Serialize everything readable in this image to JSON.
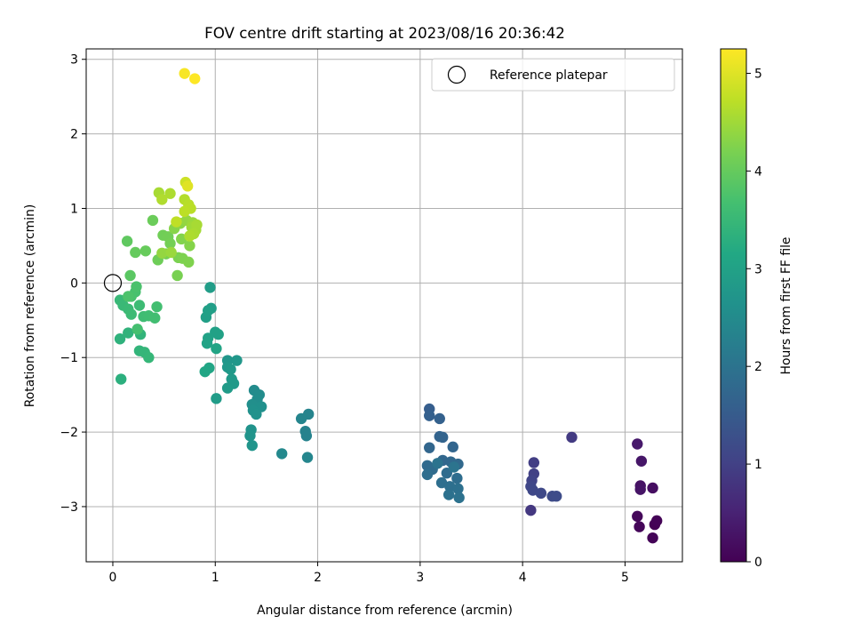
{
  "chart_data": {
    "type": "scatter",
    "title": "FOV centre drift starting at 2023/08/16 20:36:42",
    "xlabel": "Angular distance from reference (arcmin)",
    "ylabel": "Rotation from reference (arcmin)",
    "xlim": [
      -0.26,
      5.56
    ],
    "ylim": [
      -3.74,
      3.14
    ],
    "xticks": [
      "0",
      "1",
      "2",
      "3",
      "4",
      "5"
    ],
    "yticks": [
      "−3",
      "−2",
      "−1",
      "0",
      "1",
      "2",
      "3"
    ],
    "grid": true,
    "legend": {
      "placement": "top-right",
      "entries": [
        "Reference platepar"
      ]
    },
    "colorbar": {
      "label": "Hours from first FF file",
      "range": [
        0,
        5.25
      ],
      "ticks": [
        "0",
        "1",
        "2",
        "3",
        "4",
        "5"
      ],
      "colormap": "viridis"
    },
    "reference_point": {
      "x": 0,
      "y": 0
    },
    "points": [
      [
        5.29,
        -3.24,
        0.0
      ],
      [
        5.31,
        -3.19,
        0.03
      ],
      [
        5.27,
        -3.42,
        0.05
      ],
      [
        5.14,
        -3.27,
        0.08
      ],
      [
        5.12,
        -3.13,
        0.1
      ],
      [
        5.27,
        -2.75,
        0.2
      ],
      [
        5.15,
        -2.72,
        0.25
      ],
      [
        5.15,
        -2.77,
        0.28
      ],
      [
        5.16,
        -2.39,
        0.32
      ],
      [
        5.12,
        -2.16,
        0.36
      ],
      [
        4.48,
        -2.07,
        0.9
      ],
      [
        4.08,
        -3.05,
        0.85
      ],
      [
        4.11,
        -2.41,
        0.95
      ],
      [
        4.11,
        -2.56,
        1.0
      ],
      [
        4.09,
        -2.65,
        1.05
      ],
      [
        4.08,
        -2.73,
        1.1
      ],
      [
        4.1,
        -2.78,
        1.12
      ],
      [
        4.18,
        -2.82,
        1.15
      ],
      [
        4.29,
        -2.86,
        1.18
      ],
      [
        4.33,
        -2.86,
        1.2
      ],
      [
        3.09,
        -1.69,
        1.55
      ],
      [
        3.09,
        -1.78,
        1.6
      ],
      [
        3.19,
        -1.82,
        1.62
      ],
      [
        3.19,
        -2.06,
        1.65
      ],
      [
        3.22,
        -2.07,
        1.67
      ],
      [
        3.32,
        -2.2,
        1.7
      ],
      [
        3.09,
        -2.21,
        1.72
      ],
      [
        3.22,
        -2.38,
        1.74
      ],
      [
        3.3,
        -2.4,
        1.76
      ],
      [
        3.37,
        -2.43,
        1.78
      ],
      [
        3.07,
        -2.45,
        1.8
      ],
      [
        3.12,
        -2.5,
        1.82
      ],
      [
        3.26,
        -2.55,
        1.84
      ],
      [
        3.36,
        -2.62,
        1.86
      ],
      [
        3.07,
        -2.57,
        1.88
      ],
      [
        3.21,
        -2.68,
        1.9
      ],
      [
        3.29,
        -2.73,
        1.92
      ],
      [
        3.37,
        -2.76,
        1.94
      ],
      [
        3.28,
        -2.84,
        1.96
      ],
      [
        3.38,
        -2.88,
        1.98
      ],
      [
        3.17,
        -2.42,
        2.0
      ],
      [
        3.33,
        -2.47,
        2.02
      ],
      [
        1.88,
        -1.99,
        2.3
      ],
      [
        1.89,
        -2.05,
        2.32
      ],
      [
        1.91,
        -1.76,
        2.35
      ],
      [
        1.84,
        -1.82,
        2.38
      ],
      [
        1.65,
        -2.29,
        2.45
      ],
      [
        1.9,
        -2.34,
        2.4
      ],
      [
        1.38,
        -1.44,
        2.5
      ],
      [
        1.43,
        -1.5,
        2.52
      ],
      [
        1.41,
        -1.56,
        2.55
      ],
      [
        1.36,
        -1.63,
        2.58
      ],
      [
        1.45,
        -1.66,
        2.6
      ],
      [
        1.37,
        -1.71,
        2.62
      ],
      [
        1.4,
        -1.76,
        2.65
      ],
      [
        1.35,
        -1.97,
        2.68
      ],
      [
        1.34,
        -2.05,
        2.7
      ],
      [
        1.36,
        -2.18,
        2.72
      ],
      [
        1.12,
        -1.04,
        2.75
      ],
      [
        1.21,
        -1.04,
        2.76
      ],
      [
        1.12,
        -1.13,
        2.78
      ],
      [
        1.15,
        -1.16,
        2.8
      ],
      [
        1.16,
        -1.29,
        2.82
      ],
      [
        1.18,
        -1.35,
        2.84
      ],
      [
        1.12,
        -1.41,
        2.86
      ],
      [
        1.01,
        -1.55,
        2.88
      ],
      [
        0.95,
        -0.06,
        2.9
      ],
      [
        0.96,
        -0.34,
        2.92
      ],
      [
        0.91,
        -0.46,
        2.94
      ],
      [
        0.93,
        -0.37,
        2.96
      ],
      [
        1.0,
        -0.66,
        2.98
      ],
      [
        1.03,
        -0.69,
        3.0
      ],
      [
        0.93,
        -0.74,
        3.02
      ],
      [
        0.92,
        -0.81,
        3.04
      ],
      [
        1.01,
        -0.88,
        3.06
      ],
      [
        0.94,
        -1.14,
        3.08
      ],
      [
        0.9,
        -1.19,
        3.1
      ],
      [
        0.08,
        -1.29,
        3.3
      ],
      [
        0.07,
        -0.75,
        3.35
      ],
      [
        0.15,
        -0.67,
        3.38
      ],
      [
        0.27,
        -0.69,
        3.4
      ],
      [
        0.26,
        -0.91,
        3.42
      ],
      [
        0.31,
        -0.93,
        3.44
      ],
      [
        0.35,
        -1.0,
        3.46
      ],
      [
        0.07,
        -0.23,
        3.5
      ],
      [
        0.1,
        -0.3,
        3.52
      ],
      [
        0.15,
        -0.35,
        3.54
      ],
      [
        0.18,
        -0.42,
        3.56
      ],
      [
        0.26,
        -0.3,
        3.58
      ],
      [
        0.3,
        -0.45,
        3.6
      ],
      [
        0.35,
        -0.44,
        3.62
      ],
      [
        0.41,
        -0.47,
        3.64
      ],
      [
        0.43,
        -0.32,
        3.66
      ],
      [
        0.24,
        -0.62,
        3.68
      ],
      [
        0.22,
        -0.12,
        3.7
      ],
      [
        0.18,
        -0.18,
        3.72
      ],
      [
        0.23,
        -0.05,
        3.74
      ],
      [
        0.15,
        -0.18,
        3.76
      ],
      [
        0.17,
        0.1,
        3.9
      ],
      [
        0.14,
        0.56,
        3.95
      ],
      [
        0.22,
        0.41,
        4.0
      ],
      [
        0.32,
        0.43,
        4.02
      ],
      [
        0.39,
        0.84,
        4.05
      ],
      [
        0.44,
        0.31,
        4.08
      ],
      [
        0.49,
        0.64,
        4.1
      ],
      [
        0.54,
        0.62,
        4.12
      ],
      [
        0.56,
        0.53,
        4.14
      ],
      [
        0.52,
        0.39,
        4.16
      ],
      [
        0.63,
        0.1,
        4.18
      ],
      [
        0.64,
        0.34,
        4.2
      ],
      [
        0.68,
        0.33,
        4.22
      ],
      [
        0.74,
        0.28,
        4.24
      ],
      [
        0.67,
        0.59,
        4.26
      ],
      [
        0.75,
        0.5,
        4.28
      ],
      [
        0.6,
        0.73,
        4.3
      ],
      [
        0.66,
        0.8,
        4.35
      ],
      [
        0.72,
        0.84,
        4.4
      ],
      [
        0.78,
        0.81,
        4.45
      ],
      [
        0.77,
        0.75,
        4.5
      ],
      [
        0.81,
        0.71,
        4.52
      ],
      [
        0.82,
        0.78,
        4.55
      ],
      [
        0.79,
        0.66,
        4.58
      ],
      [
        0.75,
        0.63,
        4.6
      ],
      [
        0.48,
        0.4,
        4.4
      ],
      [
        0.57,
        0.41,
        4.45
      ],
      [
        0.45,
        1.21,
        4.55
      ],
      [
        0.56,
        1.2,
        4.6
      ],
      [
        0.48,
        1.12,
        4.62
      ],
      [
        0.7,
        1.12,
        4.65
      ],
      [
        0.74,
        1.05,
        4.68
      ],
      [
        0.76,
        1.0,
        4.7
      ],
      [
        0.7,
        0.96,
        4.72
      ],
      [
        0.62,
        0.82,
        4.74
      ],
      [
        0.71,
        1.35,
        4.85
      ],
      [
        0.73,
        1.3,
        5.0
      ],
      [
        0.7,
        2.81,
        5.2
      ],
      [
        0.8,
        2.74,
        5.25
      ]
    ]
  }
}
